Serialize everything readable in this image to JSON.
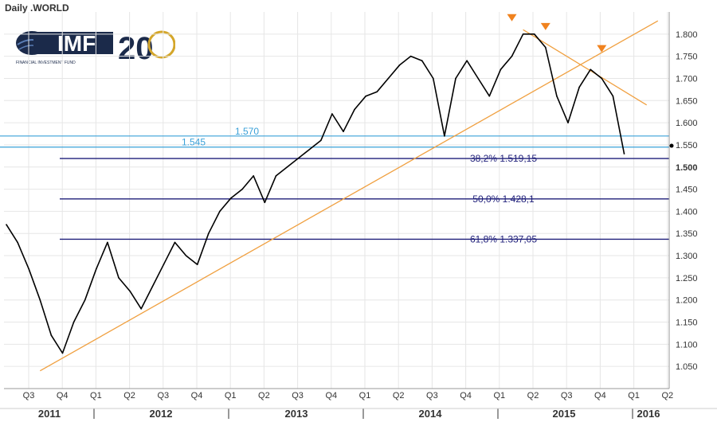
{
  "chart_data": {
    "type": "line",
    "title": "Daily .WORLD",
    "ylim": [
      1.0,
      1.85
    ],
    "y_ticks": [
      "1.800",
      "1.750",
      "1.700",
      "1.650",
      "1.600",
      "1.550",
      "1.500",
      "1.450",
      "1.400",
      "1.350",
      "1.300",
      "1.250",
      "1.200",
      "1.150",
      "1.100",
      "1.050"
    ],
    "y_tick_values": [
      1.8,
      1.75,
      1.7,
      1.65,
      1.6,
      1.55,
      1.5,
      1.45,
      1.4,
      1.35,
      1.3,
      1.25,
      1.2,
      1.15,
      1.1,
      1.05
    ],
    "y_bold_tick": "1.500",
    "x_quarter_labels": [
      "Q3",
      "Q4",
      "Q1",
      "Q2",
      "Q3",
      "Q4",
      "Q1",
      "Q2",
      "Q3",
      "Q4",
      "Q1",
      "Q2",
      "Q3",
      "Q4",
      "Q1",
      "Q2",
      "Q3",
      "Q4",
      "Q1",
      "Q2"
    ],
    "x_year_labels": [
      "2011",
      "2012",
      "2013",
      "2014",
      "2015",
      "2016"
    ],
    "series": [
      {
        "color": "#000000",
        "x": [
          "2011-07",
          "2011-08",
          "2011-09",
          "2011-10",
          "2011-11",
          "2011-12",
          "2012-01",
          "2012-02",
          "2012-03",
          "2012-04",
          "2012-05",
          "2012-06",
          "2012-07",
          "2012-08",
          "2012-09",
          "2012-10",
          "2012-11",
          "2012-12",
          "2013-01",
          "2013-02",
          "2013-03",
          "2013-04",
          "2013-05",
          "2013-06",
          "2013-07",
          "2013-08",
          "2013-09",
          "2013-10",
          "2013-11",
          "2013-12",
          "2014-01",
          "2014-02",
          "2014-03",
          "2014-04",
          "2014-05",
          "2014-06",
          "2014-07",
          "2014-08",
          "2014-09",
          "2014-10",
          "2014-11",
          "2014-12",
          "2015-01",
          "2015-02",
          "2015-03",
          "2015-04",
          "2015-05",
          "2015-06",
          "2015-07",
          "2015-08",
          "2015-09",
          "2015-10",
          "2015-11",
          "2015-12",
          "2016-01",
          "2016-02"
        ],
        "values": [
          1.37,
          1.33,
          1.27,
          1.2,
          1.12,
          1.08,
          1.15,
          1.2,
          1.27,
          1.33,
          1.25,
          1.22,
          1.18,
          1.23,
          1.28,
          1.33,
          1.3,
          1.28,
          1.35,
          1.4,
          1.43,
          1.45,
          1.48,
          1.42,
          1.48,
          1.5,
          1.52,
          1.54,
          1.56,
          1.62,
          1.58,
          1.63,
          1.66,
          1.67,
          1.7,
          1.73,
          1.75,
          1.74,
          1.7,
          1.57,
          1.7,
          1.74,
          1.7,
          1.66,
          1.72,
          1.75,
          1.8,
          1.8,
          1.77,
          1.66,
          1.6,
          1.68,
          1.72,
          1.7,
          1.66,
          1.53
        ]
      }
    ],
    "horizontal_lines": [
      {
        "value": 1.57,
        "label": "1.570",
        "color": "#3aa0d8"
      },
      {
        "value": 1.545,
        "label": "1.545",
        "color": "#3aa0d8"
      }
    ],
    "fibonacci_levels": [
      {
        "value": 1.51915,
        "label": "38,2%  1.519,15",
        "color": "#1f1f7a"
      },
      {
        "value": 1.4281,
        "label": "50,0%  1.428,1",
        "color": "#1f1f7a"
      },
      {
        "value": 1.33705,
        "label": "61,8%  1.337,05",
        "color": "#1f1f7a"
      }
    ],
    "trendlines": [
      {
        "color": "#f0a040",
        "from": {
          "x": "2011-10",
          "y": 1.04
        },
        "to": {
          "x": "2016-05",
          "y": 1.83
        }
      },
      {
        "color": "#f0a040",
        "from": {
          "x": "2015-05",
          "y": 1.81
        },
        "to": {
          "x": "2016-04",
          "y": 1.64
        }
      }
    ],
    "markers": [
      {
        "x": "2015-04",
        "y": 1.82
      },
      {
        "x": "2015-07",
        "y": 1.8
      },
      {
        "x": "2015-12",
        "y": 1.75
      }
    ],
    "colors": {
      "price": "#000000",
      "grid": "#e6e6e6",
      "trend": "#f0a040",
      "support": "#3aa0d8",
      "fib": "#1f1f7a",
      "marker": "#f0821e"
    }
  },
  "logo": {
    "text": "IMF",
    "anniversary": "20",
    "tagline": "FINANCIAL INVESTMENT FUND"
  }
}
